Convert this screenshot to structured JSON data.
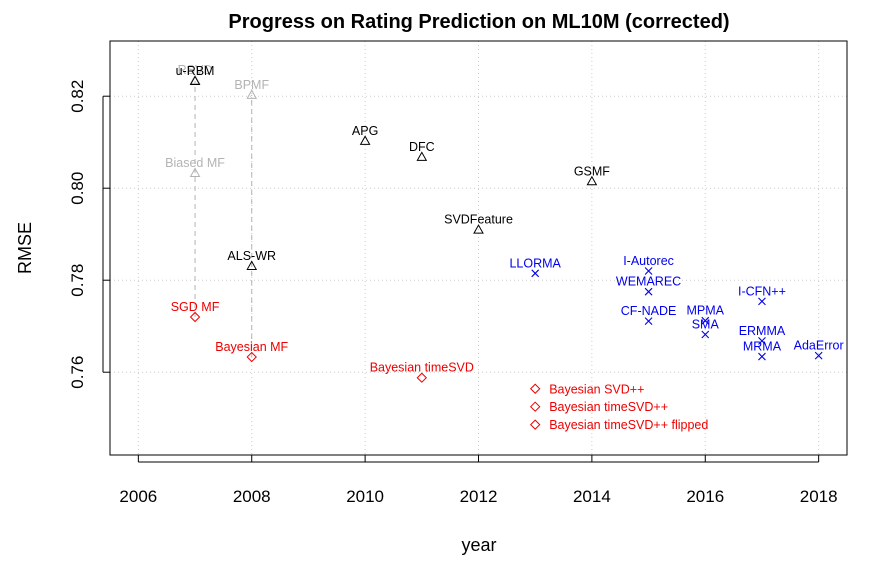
{
  "chart_data": {
    "type": "scatter",
    "title": "Progress on Rating Prediction on ML10M  (corrected)",
    "xlabel": "year",
    "ylabel": "RMSE",
    "xlim": [
      2005.5,
      2018.5
    ],
    "ylim": [
      0.742,
      0.832
    ],
    "xticks": [
      2006,
      2008,
      2010,
      2012,
      2014,
      2016,
      2018
    ],
    "yticks": [
      0.76,
      0.78,
      0.8,
      0.82
    ],
    "xtick_labels": [
      "2006",
      "2008",
      "2010",
      "2012",
      "2014",
      "2016",
      "2018"
    ],
    "ytick_labels": [
      "0.76",
      "0.78",
      "0.80",
      "0.82"
    ],
    "grid": true,
    "colors": {
      "black": "#000000",
      "gray": "#b3b3b3",
      "red": "#ee0000",
      "blue": "#0000ee",
      "grid": "#cccccc"
    },
    "points": [
      {
        "label": "RSVD",
        "x": 2007,
        "y": 0.8235,
        "marker": "triangle",
        "color": "gray",
        "label_pos": "above"
      },
      {
        "label": "u-RBM",
        "x": 2007,
        "y": 0.8233,
        "marker": "triangle",
        "color": "black",
        "label_pos": "above"
      },
      {
        "label": "BPMF",
        "x": 2008,
        "y": 0.8203,
        "marker": "triangle",
        "color": "gray",
        "label_pos": "above"
      },
      {
        "label": "Biased MF",
        "x": 2007,
        "y": 0.8033,
        "marker": "triangle",
        "color": "gray",
        "label_pos": "above"
      },
      {
        "label": "APG",
        "x": 2010,
        "y": 0.8103,
        "marker": "triangle",
        "color": "black",
        "label_pos": "above"
      },
      {
        "label": "DFC",
        "x": 2011,
        "y": 0.8068,
        "marker": "triangle",
        "color": "black",
        "label_pos": "above"
      },
      {
        "label": "GSMF",
        "x": 2014,
        "y": 0.8015,
        "marker": "triangle",
        "color": "black",
        "label_pos": "above"
      },
      {
        "label": "SVDFeature",
        "x": 2012,
        "y": 0.791,
        "marker": "triangle",
        "color": "black",
        "label_pos": "above"
      },
      {
        "label": "ALS-WR",
        "x": 2008,
        "y": 0.7831,
        "marker": "triangle",
        "color": "black",
        "label_pos": "above"
      },
      {
        "label": "SGD MF",
        "x": 2007,
        "y": 0.772,
        "marker": "diamond",
        "color": "red",
        "label_pos": "above"
      },
      {
        "label": "Bayesian MF",
        "x": 2008,
        "y": 0.7633,
        "marker": "diamond",
        "color": "red",
        "label_pos": "above"
      },
      {
        "label": "Bayesian timeSVD",
        "x": 2011,
        "y": 0.7588,
        "marker": "diamond",
        "color": "red",
        "label_pos": "above"
      },
      {
        "label": "LLORMA",
        "x": 2013,
        "y": 0.7815,
        "marker": "x",
        "color": "blue",
        "label_pos": "above"
      },
      {
        "label": "I-Autorec",
        "x": 2015,
        "y": 0.782,
        "marker": "x",
        "color": "blue",
        "label_pos": "above"
      },
      {
        "label": "WEMAREC",
        "x": 2015,
        "y": 0.7775,
        "marker": "x",
        "color": "blue",
        "label_pos": "above"
      },
      {
        "label": "CF-NADE",
        "x": 2015,
        "y": 0.7711,
        "marker": "x",
        "color": "blue",
        "label_pos": "above"
      },
      {
        "label": "MPMA",
        "x": 2016,
        "y": 0.7712,
        "marker": "x",
        "color": "blue",
        "label_pos": "above"
      },
      {
        "label": "SMA",
        "x": 2016,
        "y": 0.7682,
        "marker": "x",
        "color": "blue",
        "label_pos": "above"
      },
      {
        "label": "I-CFN++",
        "x": 2017,
        "y": 0.7754,
        "marker": "x",
        "color": "blue",
        "label_pos": "above"
      },
      {
        "label": "ERMMA",
        "x": 2017,
        "y": 0.7668,
        "marker": "x",
        "color": "blue",
        "label_pos": "above"
      },
      {
        "label": "MRMA",
        "x": 2017,
        "y": 0.7634,
        "marker": "x",
        "color": "blue",
        "label_pos": "above"
      },
      {
        "label": "AdaError",
        "x": 2018,
        "y": 0.7636,
        "marker": "x",
        "color": "blue",
        "label_pos": "above"
      },
      {
        "label": "Bayesian SVD++",
        "x": 2013,
        "y": 0.7564,
        "marker": "diamond",
        "color": "red",
        "label_pos": "right"
      },
      {
        "label": "Bayesian timeSVD++",
        "x": 2013,
        "y": 0.7525,
        "marker": "diamond",
        "color": "red",
        "label_pos": "right"
      },
      {
        "label": "Bayesian timeSVD++ flipped",
        "x": 2013,
        "y": 0.7486,
        "marker": "diamond",
        "color": "red",
        "label_pos": "right"
      }
    ],
    "dashed_links": [
      {
        "x": 2007,
        "y1": 0.772,
        "y2": 0.8233
      },
      {
        "x": 2008,
        "y1": 0.7633,
        "y2": 0.8203
      }
    ]
  }
}
